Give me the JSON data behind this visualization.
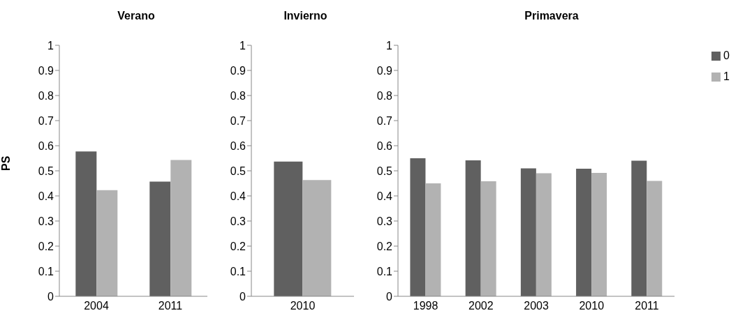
{
  "chart_data": [
    {
      "type": "bar",
      "title": "Verano",
      "ylabel": "PS",
      "categories": [
        "2004",
        "2011"
      ],
      "ylim": [
        0,
        1
      ],
      "yticks": [
        0,
        0.1,
        0.2,
        0.3,
        0.4,
        0.5,
        0.6,
        0.7,
        0.8,
        0.9,
        1
      ],
      "grid": false,
      "legend": false,
      "series": [
        {
          "color": "#606060",
          "values": [
            0.577,
            0.457
          ]
        },
        {
          "color": "#b2b2b2",
          "values": [
            0.423,
            0.543
          ]
        }
      ]
    },
    {
      "type": "bar",
      "title": "Invierno",
      "categories": [
        "2010"
      ],
      "ylim": [
        0,
        1
      ],
      "yticks": [
        0,
        0.1,
        0.2,
        0.3,
        0.4,
        0.5,
        0.6,
        0.7,
        0.8,
        0.9,
        1
      ],
      "grid": false,
      "legend": false,
      "series": [
        {
          "color": "#606060",
          "values": [
            0.537
          ]
        },
        {
          "color": "#b2b2b2",
          "values": [
            0.463
          ]
        }
      ]
    },
    {
      "type": "bar",
      "title": "Primavera",
      "categories": [
        "1998",
        "2002",
        "2003",
        "2010",
        "2011"
      ],
      "ylim": [
        0,
        1
      ],
      "yticks": [
        0,
        0.1,
        0.2,
        0.3,
        0.4,
        0.5,
        0.6,
        0.7,
        0.8,
        0.9,
        1
      ],
      "grid": false,
      "legend": "top right",
      "series": [
        {
          "name": "0",
          "color": "#606060",
          "values": [
            0.55,
            0.542,
            0.51,
            0.508,
            0.54
          ]
        },
        {
          "name": "1",
          "color": "#b2b2b2",
          "values": [
            0.45,
            0.458,
            0.49,
            0.492,
            0.46
          ]
        }
      ]
    }
  ]
}
